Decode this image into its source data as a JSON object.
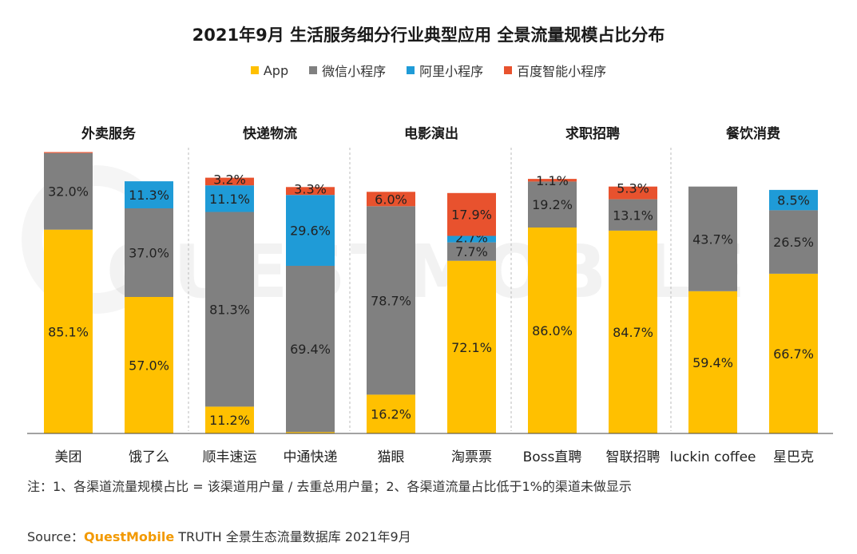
{
  "title": "2021年9月 生活服务细分行业典型应用 全景流量规模占比分布",
  "note": "注：1、各渠道流量规模占比 = 该渠道用户量 / 去重总用户量；2、各渠道流量占比低于1%的渠道未做显示",
  "source": {
    "label": "Source：",
    "brand": "QuestMobile",
    "text": " TRUTH 全景生态流量数据库 2021年9月"
  },
  "watermark": "QUESTMOBILE",
  "colors": {
    "App": "#ffc000",
    "微信小程序": "#808080",
    "阿里小程序": "#1f9bd7",
    "百度智能小程序": "#e8522e"
  },
  "chart_data": {
    "type": "bar",
    "stacked": true,
    "groups": [
      {
        "name": "外卖服务",
        "apps": [
          "美团",
          "饿了么"
        ]
      },
      {
        "name": "快递物流",
        "apps": [
          "顺丰速运",
          "中通快递"
        ]
      },
      {
        "name": "电影演出",
        "apps": [
          "猫眼",
          "淘票票"
        ]
      },
      {
        "name": "求职招聘",
        "apps": [
          "Boss直聘",
          "智联招聘"
        ]
      },
      {
        "name": "餐饮消费",
        "apps": [
          "luckin coffee",
          "星巴克"
        ]
      }
    ],
    "categories": [
      "美团",
      "饿了么",
      "顺丰速运",
      "中通快递",
      "猫眼",
      "淘票票",
      "Boss直聘",
      "智联招聘",
      "luckin coffee",
      "星巴克"
    ],
    "series": [
      {
        "name": "App",
        "values": [
          85.1,
          57.0,
          11.2,
          0.6,
          16.2,
          72.1,
          86.0,
          84.7,
          59.4,
          66.7
        ]
      },
      {
        "name": "微信小程序",
        "values": [
          32.0,
          37.0,
          81.3,
          69.4,
          78.7,
          7.7,
          19.2,
          13.1,
          43.7,
          26.5
        ]
      },
      {
        "name": "阿里小程序",
        "values": [
          0,
          11.3,
          11.1,
          29.6,
          0,
          2.7,
          0,
          0,
          0,
          8.5
        ]
      },
      {
        "name": "百度智能小程序",
        "values": [
          0.4,
          0,
          3.2,
          3.3,
          6.0,
          17.9,
          1.1,
          5.3,
          0,
          0
        ]
      }
    ],
    "data_labels": [
      [
        "85.1%",
        "32.0%",
        null,
        null
      ],
      [
        "57.0%",
        "37.0%",
        "11.3%",
        null
      ],
      [
        "11.2%",
        "81.3%",
        "11.1%",
        "3.2%"
      ],
      [
        null,
        "69.4%",
        "29.6%",
        "3.3%"
      ],
      [
        "16.2%",
        "78.7%",
        null,
        "6.0%"
      ],
      [
        "72.1%",
        "7.7%",
        "2.7%",
        "17.9%"
      ],
      [
        "86.0%",
        "19.2%",
        null,
        "1.1%"
      ],
      [
        "84.7%",
        "13.1%",
        null,
        "5.3%"
      ],
      [
        "59.4%",
        "43.7%",
        null,
        null
      ],
      [
        "66.7%",
        "26.5%",
        "8.5%",
        null
      ]
    ]
  }
}
